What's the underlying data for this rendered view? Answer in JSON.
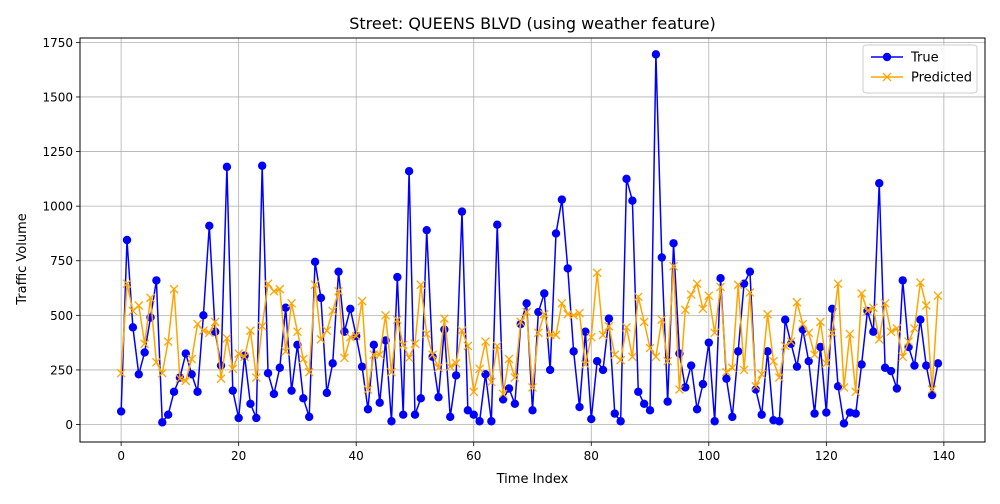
{
  "chart_data": {
    "type": "line",
    "title": "Street: QUEENS BLVD (using weather feature)",
    "xlabel": "Time Index",
    "ylabel": "Traffic Volume",
    "xlim": [
      -7,
      147
    ],
    "ylim": [
      -80,
      1770
    ],
    "x_ticks": [
      0,
      20,
      40,
      60,
      80,
      100,
      120,
      140
    ],
    "x_tick_labels": [
      "0",
      "20",
      "40",
      "60",
      "80",
      "100",
      "120",
      "140"
    ],
    "y_ticks": [
      0,
      250,
      500,
      750,
      1000,
      1250,
      1500,
      1750
    ],
    "y_tick_labels": [
      "0",
      "250",
      "500",
      "750",
      "1000",
      "1250",
      "1500",
      "1750"
    ],
    "grid": true,
    "legend_position": "top-right",
    "colors": {
      "true": "#0000ff",
      "predicted": "#ffa500",
      "grid": "#b0b0b0"
    },
    "series": [
      {
        "name": "True",
        "marker": "circle",
        "values": [
          60,
          845,
          445,
          230,
          330,
          490,
          660,
          10,
          45,
          150,
          215,
          325,
          230,
          150,
          500,
          910,
          425,
          270,
          1180,
          155,
          30,
          315,
          95,
          30,
          1185,
          235,
          140,
          260,
          535,
          155,
          365,
          120,
          35,
          745,
          580,
          145,
          280,
          700,
          425,
          530,
          405,
          265,
          70,
          365,
          100,
          385,
          15,
          675,
          45,
          1160,
          45,
          120,
          890,
          310,
          125,
          435,
          35,
          225,
          975,
          65,
          45,
          15,
          230,
          15,
          915,
          115,
          165,
          95,
          460,
          555,
          65,
          515,
          600,
          250,
          875,
          1030,
          715,
          335,
          80,
          425,
          25,
          290,
          250,
          485,
          50,
          15,
          1125,
          1025,
          150,
          95,
          65,
          1695,
          765,
          105,
          830,
          325,
          170,
          270,
          70,
          185,
          375,
          15,
          670,
          210,
          35,
          335,
          645,
          700,
          160,
          45,
          335,
          20,
          15,
          480,
          370,
          265,
          435,
          290,
          50,
          355,
          55,
          530,
          175,
          5,
          55,
          50,
          275,
          520,
          425,
          1105,
          260,
          245,
          165,
          660,
          355,
          270,
          480,
          270,
          135,
          280
        ]
      },
      {
        "name": "Predicted",
        "marker": "x",
        "values": [
          235,
          645,
          520,
          545,
          370,
          580,
          285,
          235,
          380,
          620,
          210,
          200,
          300,
          460,
          430,
          420,
          470,
          210,
          395,
          255,
          325,
          310,
          430,
          215,
          450,
          645,
          610,
          620,
          335,
          555,
          425,
          300,
          240,
          640,
          390,
          430,
          520,
          610,
          305,
          400,
          405,
          565,
          160,
          320,
          320,
          500,
          240,
          480,
          365,
          305,
          370,
          640,
          415,
          320,
          260,
          485,
          265,
          280,
          430,
          360,
          150,
          255,
          380,
          195,
          360,
          140,
          300,
          215,
          470,
          515,
          170,
          420,
          505,
          410,
          410,
          555,
          505,
          500,
          510,
          275,
          400,
          695,
          410,
          450,
          320,
          295,
          445,
          310,
          585,
          470,
          350,
          310,
          480,
          290,
          725,
          160,
          525,
          595,
          645,
          530,
          590,
          420,
          630,
          240,
          260,
          640,
          250,
          605,
          175,
          230,
          505,
          290,
          215,
          360,
          380,
          560,
          460,
          420,
          320,
          470,
          280,
          420,
          645,
          170,
          415,
          150,
          600,
          520,
          535,
          390,
          555,
          425,
          440,
          310,
          380,
          440,
          650,
          545,
          160,
          590
        ]
      }
    ]
  }
}
